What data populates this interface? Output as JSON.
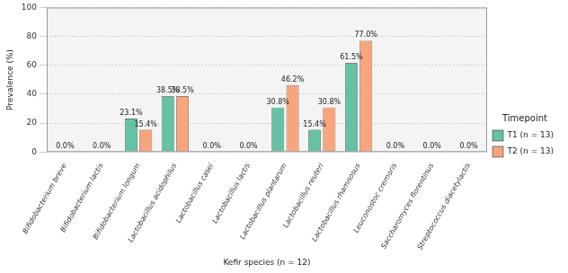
{
  "chart_data": {
    "type": "bar",
    "x_label": "Kefir species (n = 12)",
    "y_label": "Prevalence (%)",
    "legend_title": "Timepoint",
    "categories": [
      "Bifidobacterium breve",
      "Bifidobacterium lactis",
      "Bifidobacterium longum",
      "Lactobacillus acidophilus",
      "Lactobacillus casei",
      "Lactobacillus lactis",
      "Lactobacillus plantarum",
      "Lactobacillus reuteri",
      "Lactobacillus rhamnosus",
      "Leuconostoc cremoris",
      "Saccharomyces florentinus",
      "Streptococcus diacetylactis"
    ],
    "series": [
      {
        "name": "T1 (n = 13)",
        "color": "#66c2a5",
        "values": [
          0,
          0,
          23.1,
          38.5,
          0,
          0,
          30.8,
          15.4,
          61.5,
          0,
          0,
          0
        ],
        "value_labels": [
          "0.0%",
          "0.0%",
          "23.1%",
          "38.5%",
          "0.0%",
          "0.0%",
          "30.8%",
          "15.4%",
          "61.5%",
          "0.0%",
          "0.0%",
          "0.0%"
        ]
      },
      {
        "name": "T2 (n = 13)",
        "color": "#f8a57d",
        "values": [
          0,
          0,
          15.4,
          38.5,
          0,
          0,
          46.2,
          30.8,
          77.0,
          0,
          0,
          0
        ],
        "value_labels": [
          "0.0%",
          "0.0%",
          "15.4%",
          "38.5%",
          "0.0%",
          "0.0%",
          "46.2%",
          "30.8%",
          "77.0%",
          "0.0%",
          "0.0%",
          "0.0%"
        ]
      }
    ],
    "ylim": [
      0,
      100
    ],
    "yticks": [
      0,
      20,
      40,
      60,
      80,
      100
    ],
    "grid": true,
    "legend": "right",
    "data_labels": true
  }
}
